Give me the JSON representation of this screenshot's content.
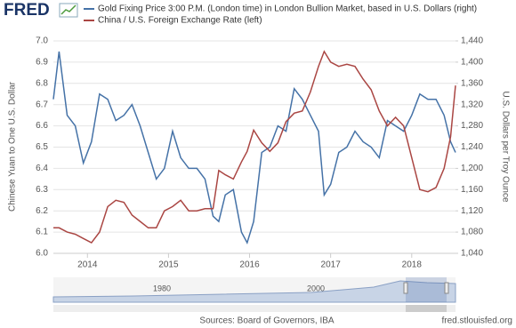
{
  "brand": "FRED",
  "chart_data": {
    "type": "line",
    "x": [
      2013.58,
      2013.65,
      2013.75,
      2013.85,
      2013.95,
      2014.05,
      2014.15,
      2014.25,
      2014.35,
      2014.45,
      2014.55,
      2014.65,
      2014.75,
      2014.85,
      2014.95,
      2015.05,
      2015.15,
      2015.25,
      2015.35,
      2015.45,
      2015.55,
      2015.62,
      2015.7,
      2015.8,
      2015.9,
      2015.97,
      2016.05,
      2016.15,
      2016.25,
      2016.35,
      2016.45,
      2016.55,
      2016.65,
      2016.75,
      2016.85,
      2016.92,
      2017.0,
      2017.1,
      2017.2,
      2017.3,
      2017.4,
      2017.5,
      2017.6,
      2017.7,
      2017.8,
      2017.9,
      2018.0,
      2018.1,
      2018.2,
      2018.3,
      2018.4,
      2018.48,
      2018.54
    ],
    "xlim": [
      2013.58,
      2018.54
    ],
    "xticks": [
      2014,
      2015,
      2016,
      2017,
      2018
    ],
    "ylim": [
      6.0,
      7.0
    ],
    "yticks": [
      {
        "value": 6,
        "label": "6.0"
      },
      6.1,
      6.2,
      6.3,
      6.4,
      6.5,
      6.6,
      6.7,
      6.8,
      6.9,
      {
        "value": 7,
        "label": "7.0"
      }
    ],
    "y2lim": [
      1040,
      1440
    ],
    "y2ticks": [
      {
        "value": 1040,
        "label": "1,040"
      },
      {
        "value": 1080,
        "label": "1,080"
      },
      {
        "value": 1120,
        "label": "1,120"
      },
      {
        "value": 1160,
        "label": "1,160"
      },
      {
        "value": 1200,
        "label": "1,200"
      },
      {
        "value": 1240,
        "label": "1,240"
      },
      {
        "value": 1280,
        "label": "1,280"
      },
      {
        "value": 1320,
        "label": "1,320"
      },
      {
        "value": 1360,
        "label": "1,360"
      },
      {
        "value": 1400,
        "label": "1,400"
      },
      {
        "value": 1440,
        "label": "1,440"
      }
    ],
    "ylabel": "Chinese Yuan to One U.S. Dollar",
    "y2label": "U.S. Dollars per Troy Ounce",
    "grid": true,
    "series": [
      {
        "name": "Gold Fixing Price 3:00 P.M. (London time) in London Bullion Market, based in U.S. Dollars (right)",
        "color": "#4572a7",
        "axis": "y2",
        "values": [
          1330,
          1420,
          1300,
          1280,
          1210,
          1250,
          1340,
          1330,
          1290,
          1300,
          1320,
          1280,
          1230,
          1180,
          1200,
          1270,
          1220,
          1200,
          1200,
          1180,
          1110,
          1100,
          1150,
          1160,
          1080,
          1060,
          1100,
          1230,
          1240,
          1280,
          1270,
          1350,
          1330,
          1300,
          1270,
          1150,
          1170,
          1230,
          1240,
          1270,
          1250,
          1240,
          1220,
          1290,
          1280,
          1270,
          1300,
          1340,
          1330,
          1330,
          1300,
          1250,
          1230
        ]
      },
      {
        "name": "China / U.S. Foreign Exchange Rate (left)",
        "color": "#aa4643",
        "axis": "y",
        "values": [
          6.12,
          6.12,
          6.1,
          6.09,
          6.07,
          6.05,
          6.1,
          6.22,
          6.25,
          6.24,
          6.18,
          6.15,
          6.12,
          6.12,
          6.2,
          6.22,
          6.25,
          6.2,
          6.2,
          6.21,
          6.21,
          6.39,
          6.37,
          6.35,
          6.43,
          6.48,
          6.58,
          6.52,
          6.48,
          6.52,
          6.62,
          6.66,
          6.67,
          6.76,
          6.88,
          6.95,
          6.9,
          6.88,
          6.89,
          6.88,
          6.82,
          6.77,
          6.67,
          6.6,
          6.64,
          6.6,
          6.45,
          6.3,
          6.29,
          6.31,
          6.4,
          6.55,
          6.79
        ]
      }
    ]
  },
  "navigator_labels": [
    "1980",
    "2000"
  ],
  "footer": {
    "source": "Sources: Board of Governors, IBA",
    "site": "fred.stlouisfed.org"
  }
}
